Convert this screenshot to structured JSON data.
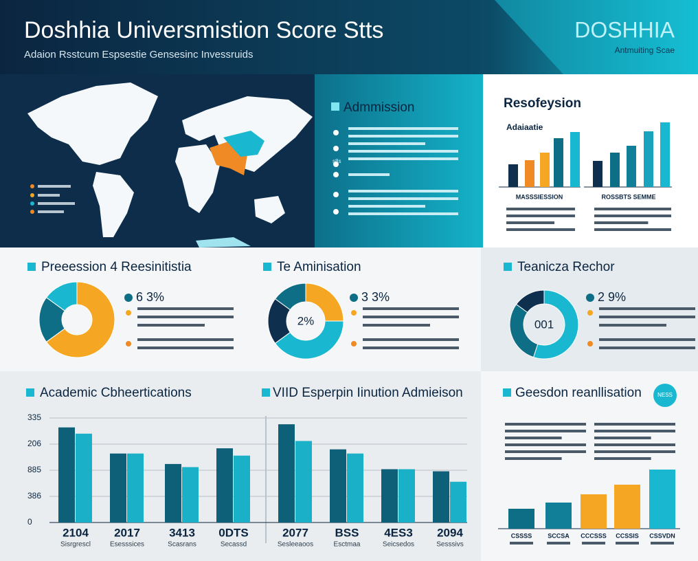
{
  "header": {
    "title": "Doshhia Universmistion Score Stts",
    "subtitle": "Adaion Rsstcum Espsestie Gensesinc Invessruids",
    "brand": "DOSHHIA",
    "brand_sub": "Antmuiting Scae"
  },
  "admission": {
    "title": "Admmission",
    "marker": "s8s"
  },
  "resofeysion": {
    "title": "Resofeysion",
    "charts": [
      {
        "label": "Adaiaatie",
        "caption": "MASSSIESSION",
        "values": [
          33,
          39,
          50,
          71,
          80
        ],
        "colors": [
          "#0f2f4f",
          "#f08a24",
          "#f5a623",
          "#0e6e85",
          "#1ab8d0"
        ]
      },
      {
        "caption": "ROSSBTS SEMME",
        "values": [
          38,
          50,
          60,
          81,
          94
        ],
        "colors": [
          "#0f2f4f",
          "#0e6e85",
          "#127f98",
          "#1aa3bd",
          "#1ab8d0"
        ]
      }
    ]
  },
  "donuts": [
    {
      "title": "Preeession 4 Reesinitistia",
      "stat": "6 3%",
      "values": [
        65,
        20,
        15
      ],
      "colors": [
        "#f5a623",
        "#0e6e85",
        "#1ab8d0"
      ]
    },
    {
      "title": "Te Aminisation",
      "stat": "3 3%",
      "center": "2%",
      "values": [
        25,
        40,
        20,
        15
      ],
      "colors": [
        "#f5a623",
        "#1ab8d0",
        "#0f2f4f",
        "#0e6e85"
      ]
    },
    {
      "title": "Teanicza Rechor",
      "stat": "2 9%",
      "center": "001",
      "values": [
        55,
        30,
        15
      ],
      "colors": [
        "#1ab8d0",
        "#0e6e85",
        "#0f2f4f"
      ]
    }
  ],
  "academic": {
    "title": "Academic Cbheertications",
    "title2": "VIID Esperpin Iinution Admieison",
    "ylim": [
      0,
      100
    ],
    "yticks": [
      0,
      {
        "value": 25,
        "label": "386"
      },
      {
        "value": 50,
        "label": "885"
      },
      {
        "value": 75,
        "label": "206"
      },
      {
        "value": 100,
        "label": "335"
      }
    ],
    "categories": [
      "2104",
      "2017",
      "3413",
      "0DTS",
      "2077",
      "BSS",
      "4ES3",
      "2094"
    ],
    "sublabels": [
      "Sisrgrescl",
      "Esesssices",
      "Scasrans",
      "Secassd",
      "Sesleeaoos",
      "Esctmaa",
      "Seicsedos",
      "Sesssivs"
    ],
    "series": [
      {
        "color": "#0e5f78",
        "values": [
          91,
          66,
          56,
          71,
          94,
          70,
          51,
          49
        ]
      },
      {
        "color": "#1ab0c8",
        "values": [
          85,
          66,
          53,
          64,
          78,
          66,
          51,
          39
        ]
      }
    ]
  },
  "realisation": {
    "title": "Geesdon reanllisation",
    "badge": "NESS",
    "categories": [
      "CSSSS",
      "SCCSA",
      "CCCSSS",
      "CCSSIS",
      "CSSVDN"
    ],
    "values": [
      29,
      38,
      50,
      64,
      86
    ],
    "colors": [
      "#0e6e85",
      "#127f98",
      "#f5a623",
      "#f5a623",
      "#1ab8d0"
    ]
  }
}
